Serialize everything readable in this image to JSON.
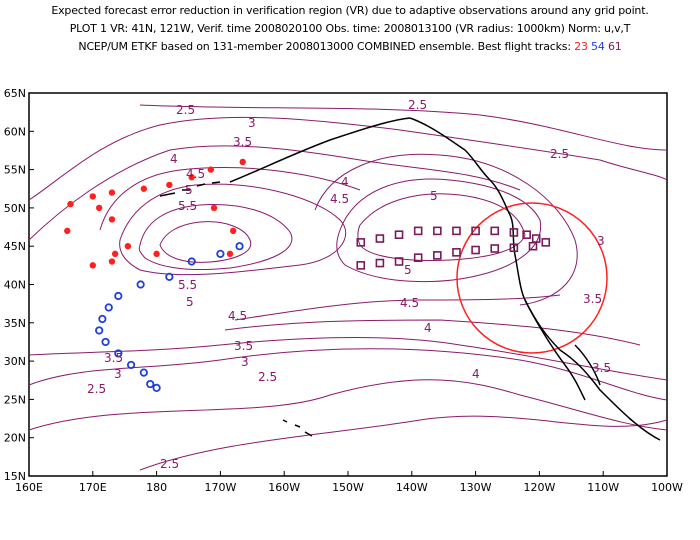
{
  "header": {
    "line1": "Expected forecast error reduction in verification region (VR) due to adaptive observations around any grid point.",
    "line2": "PLOT 1 VR: 41N, 121W, Verif. time 2008020100 Obs. time: 2008013100 (VR radius: 1000km) Norm: u,v,T",
    "line3_prefix": "NCEP/UM ETKF based on 131-member 2008013000 COMBINED ensemble.   Best flight tracks:",
    "track_a": "23",
    "track_b": "54",
    "track_c": "61"
  },
  "map": {
    "lon_labels": [
      "160E",
      "170E",
      "180",
      "170W",
      "160W",
      "150W",
      "140W",
      "130W",
      "120W",
      "110W",
      "100W"
    ],
    "lat_labels": [
      "65N",
      "60N",
      "55N",
      "50N",
      "45N",
      "40N",
      "35N",
      "30N",
      "25N",
      "20N",
      "15N"
    ],
    "lon_range": [
      160,
      260
    ],
    "lat_range": [
      15,
      65
    ],
    "contour_color": "#8b1a6b",
    "contour_labels": [
      "2.5",
      "3.5",
      "3",
      "4",
      "4.5",
      "5",
      "5.5",
      "5.5",
      "5",
      "4.5",
      "3.5",
      "3",
      "2.5",
      "2.5",
      "2.5",
      "3",
      "3.5",
      "4",
      "4.5",
      "5",
      "5",
      "4.5",
      "4",
      "3",
      "3.5",
      "3.5",
      "2.5",
      "4",
      "2.5"
    ],
    "verification_region": {
      "center_lon": 239,
      "center_lat": 41,
      "radius_km": 1000,
      "color": "#ff2020"
    },
    "track_23": {
      "color": "#ff2020",
      "marker": "dot",
      "points": [
        [
          193.5,
          56
        ],
        [
          188.5,
          55
        ],
        [
          185.5,
          54
        ],
        [
          182,
          53
        ],
        [
          178,
          52.5
        ],
        [
          173,
          52
        ],
        [
          170,
          51.5
        ],
        [
          166.5,
          50.5
        ],
        [
          171,
          50
        ],
        [
          189,
          50
        ],
        [
          192,
          47
        ],
        [
          173,
          48.5
        ],
        [
          166,
          47
        ],
        [
          175.5,
          45
        ],
        [
          173.5,
          44
        ],
        [
          173,
          43
        ],
        [
          170,
          42.5
        ],
        [
          191.5,
          44
        ],
        [
          180,
          44
        ]
      ]
    },
    "track_54": {
      "color": "#1f3fd6",
      "marker": "ring",
      "points": [
        [
          193,
          45
        ],
        [
          190,
          44
        ],
        [
          185.5,
          43
        ],
        [
          182,
          41
        ],
        [
          177.5,
          40
        ],
        [
          174,
          38.5
        ],
        [
          172.5,
          37
        ],
        [
          171.5,
          35.5
        ],
        [
          171,
          34
        ],
        [
          172,
          32.5
        ],
        [
          174,
          31
        ],
        [
          176,
          29.5
        ],
        [
          178,
          28.5
        ],
        [
          179,
          27
        ],
        [
          180,
          26.5
        ]
      ]
    },
    "track_61": {
      "color": "#7a1a5a",
      "marker": "square",
      "points": [
        [
          212,
          45.5
        ],
        [
          215,
          46
        ],
        [
          218,
          46.5
        ],
        [
          221,
          47
        ],
        [
          224,
          47
        ],
        [
          227,
          47
        ],
        [
          230,
          47
        ],
        [
          233,
          47
        ],
        [
          236,
          46.8
        ],
        [
          238,
          46.5
        ],
        [
          239.5,
          46
        ],
        [
          241,
          45.5
        ],
        [
          239,
          45
        ],
        [
          236,
          44.8
        ],
        [
          233,
          44.7
        ],
        [
          230,
          44.5
        ],
        [
          227,
          44.2
        ],
        [
          224,
          43.8
        ],
        [
          221,
          43.5
        ],
        [
          218,
          43
        ],
        [
          215,
          42.8
        ],
        [
          212,
          42.5
        ]
      ]
    }
  }
}
